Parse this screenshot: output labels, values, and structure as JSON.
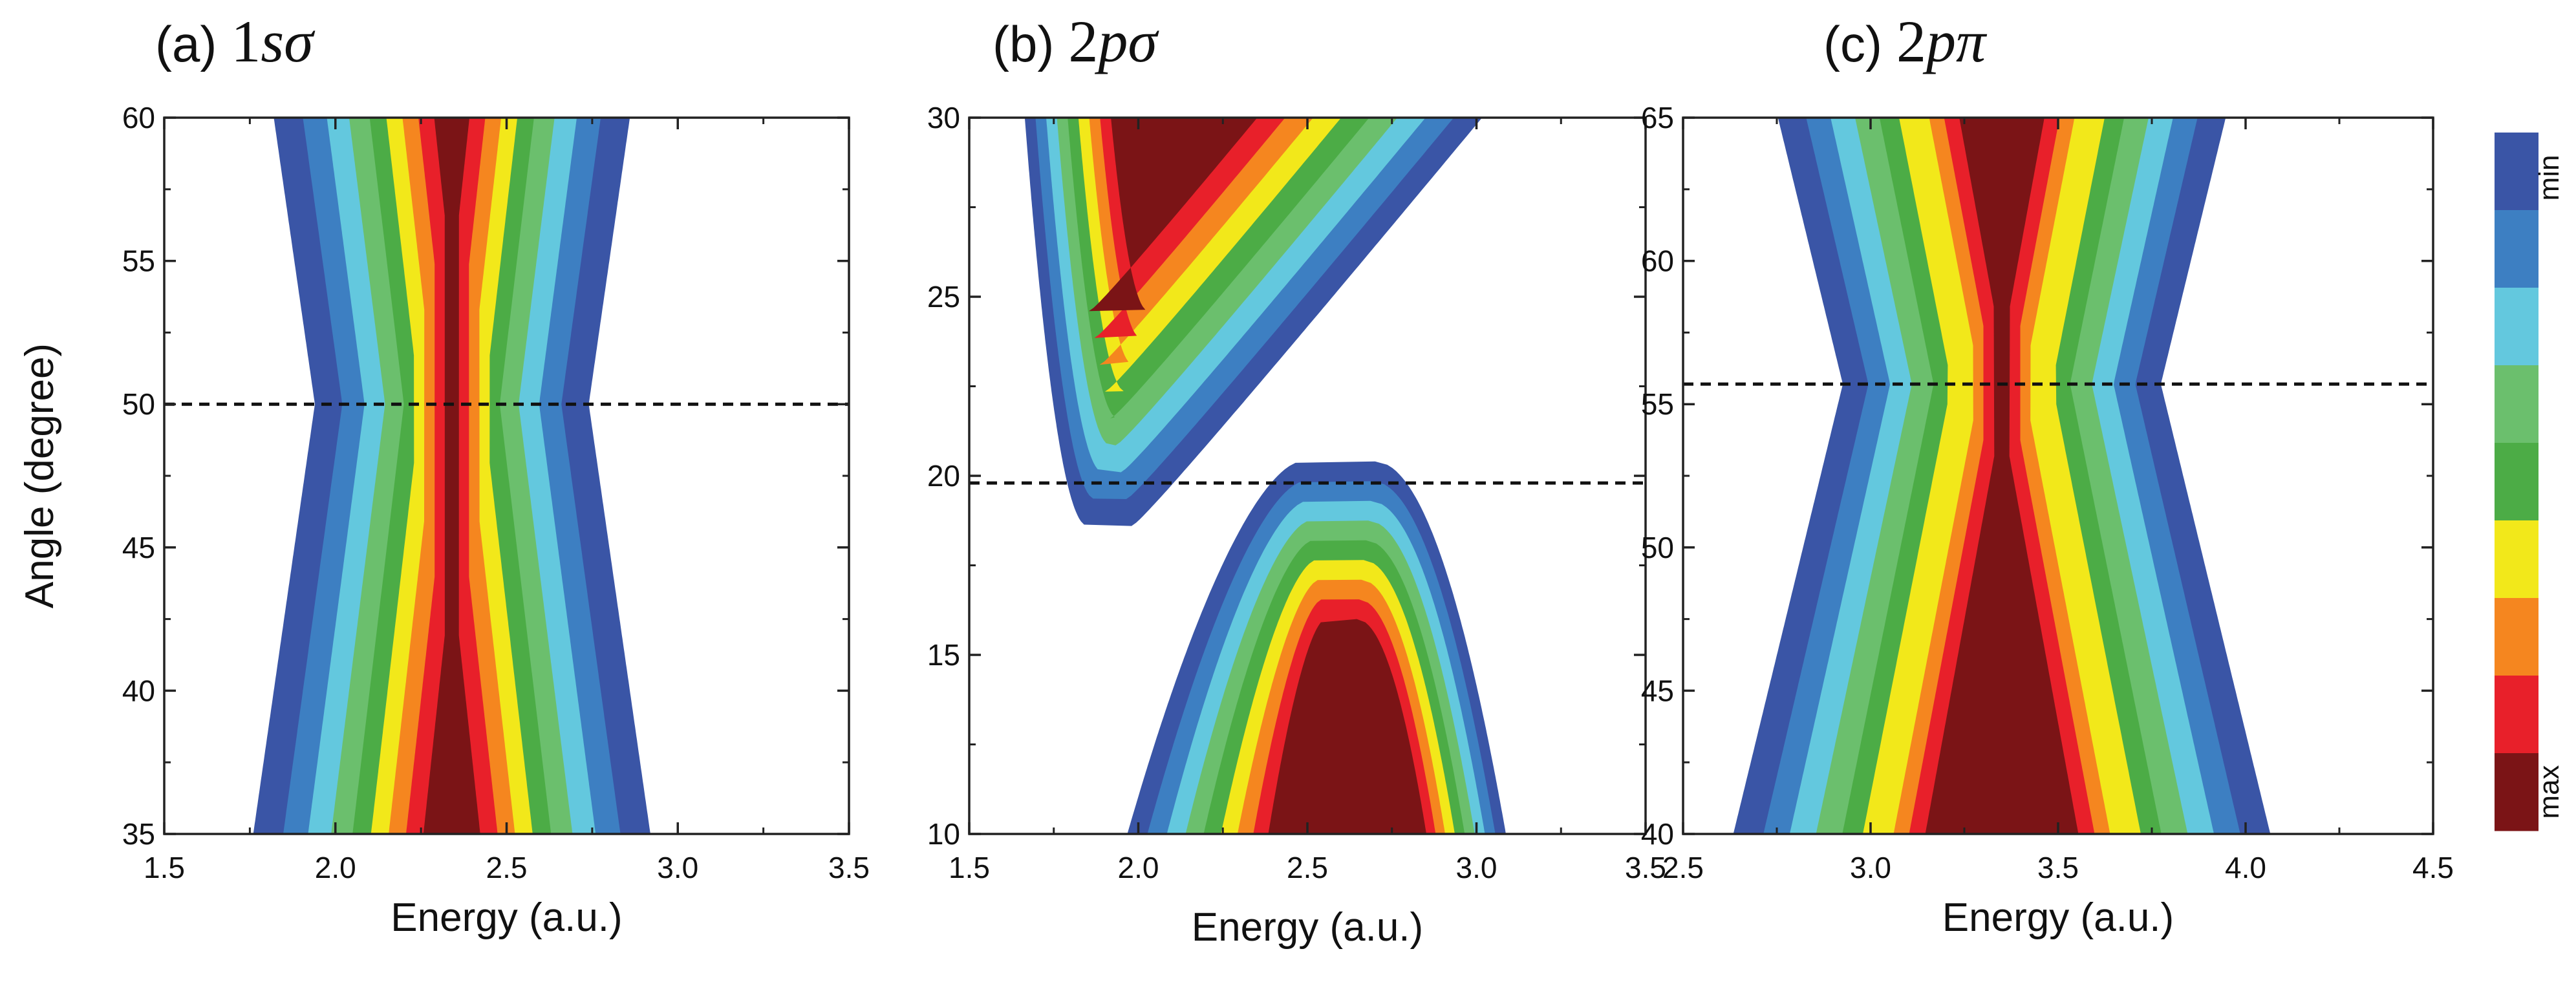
{
  "chart_data": [
    {
      "type": "heatmap",
      "panel_label": "(a)",
      "title_math": "1sσ",
      "title_num": "1",
      "title_italic": "sσ",
      "xlabel": "Energy (a.u.)",
      "ylabel": "Angle (degree)",
      "xlim": [
        1.5,
        3.5
      ],
      "ylim": [
        35,
        60
      ],
      "xticks": [
        "1.5",
        "2.0",
        "2.5",
        "3.0",
        "3.5"
      ],
      "xtick_values": [
        1.5,
        2.0,
        2.5,
        3.0,
        3.5
      ],
      "yticks": [
        "35",
        "40",
        "45",
        "50",
        "55",
        "60"
      ],
      "ytick_values": [
        35,
        40,
        45,
        50,
        55,
        60
      ],
      "dashed_line_angle": 50,
      "shape": "hourglass",
      "center_energy": 2.34,
      "neck_angle": 50,
      "level_halfwidths_at_neck": [
        0.16,
        0.11,
        0.075,
        0.045,
        0.02,
        0.0,
        0.0,
        0.0,
        0.0
      ],
      "max_color_top_start": 56.5,
      "max_color_bottom_start": 42
    },
    {
      "type": "heatmap",
      "panel_label": "(b)",
      "title_math": "2pσ",
      "title_num": "2",
      "title_italic": "pσ",
      "xlabel": "Energy (a.u.)",
      "ylabel": "",
      "xlim": [
        1.5,
        3.5
      ],
      "ylim": [
        10,
        30
      ],
      "xticks": [
        "1.5",
        "2.0",
        "2.5",
        "3.0",
        "3.5"
      ],
      "xtick_values": [
        1.5,
        2.0,
        2.5,
        3.0,
        3.5
      ],
      "yticks": [
        "10",
        "15",
        "20",
        "25",
        "30"
      ],
      "ytick_values": [
        10,
        15,
        20,
        25,
        30
      ],
      "dashed_line_angle": 19.8,
      "shape": "split-lobes",
      "upper_lobe_tip": [
        1.93,
        18.6
      ],
      "lower_lobe_peak": [
        2.7,
        20.4
      ]
    },
    {
      "type": "heatmap",
      "panel_label": "(c)",
      "title_math": "2pπ",
      "title_num": "2",
      "title_italic": "pπ",
      "xlabel": "Energy (a.u.)",
      "ylabel": "",
      "xlim": [
        2.5,
        4.5
      ],
      "ylim": [
        40,
        65
      ],
      "xticks": [
        "2.5",
        "3.0",
        "3.5",
        "4.0",
        "4.5"
      ],
      "xtick_values": [
        2.5,
        3.0,
        3.5,
        4.0,
        4.5
      ],
      "yticks": [
        "40",
        "45",
        "50",
        "55",
        "60",
        "65"
      ],
      "ytick_values": [
        40,
        45,
        50,
        55,
        60,
        65
      ],
      "dashed_line_angle": 55.7,
      "shape": "hourglass",
      "center_energy": 3.35,
      "neck_angle": 55.7,
      "level_halfwidths_at_neck": [
        0.2,
        0.16,
        0.13,
        0.1,
        0.07,
        0.04,
        0.0,
        0.0,
        0.0
      ],
      "max_color_top_start": 58.3,
      "max_color_bottom_start": 53.2
    }
  ],
  "colorbar": {
    "min_label": "min",
    "max_label": "max",
    "colors": [
      "#3a55a6",
      "#3d7fc2",
      "#63c8de",
      "#6bbf6d",
      "#4cac46",
      "#f2e81a",
      "#f5861f",
      "#e8202a",
      "#7b1416"
    ]
  }
}
